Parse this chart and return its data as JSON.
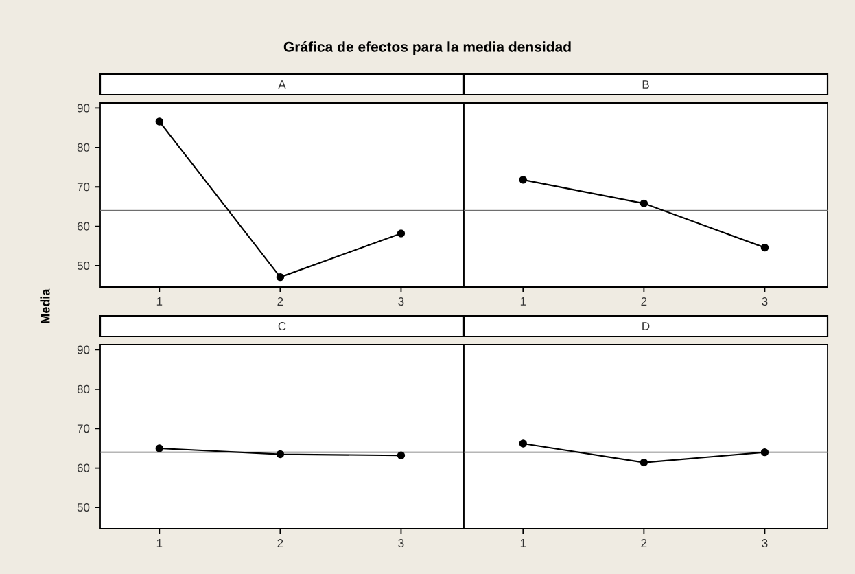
{
  "chart_data": [
    {
      "type": "other",
      "title": "Gráfica de efectos para la media densidad"
    },
    {
      "type": "line",
      "title": "A",
      "ylabel": "Media",
      "categories": [
        "1",
        "2",
        "3"
      ],
      "series": [
        {
          "color": "#000000",
          "values": [
            86.6,
            47.1,
            58.2
          ]
        }
      ],
      "ylim": [
        44.6,
        91.3
      ],
      "yticks": [
        50,
        60,
        70,
        80,
        90
      ],
      "ref_lines": [
        {
          "axis": "y",
          "value": 64,
          "color": "#6e6e6e"
        }
      ],
      "marker": "circle",
      "line_style": "solid",
      "grid": false
    },
    {
      "type": "line",
      "title": "B",
      "categories": [
        "1",
        "2",
        "3"
      ],
      "series": [
        {
          "color": "#000000",
          "values": [
            71.8,
            65.8,
            54.6
          ]
        }
      ],
      "ylim": [
        44.6,
        91.3
      ],
      "tick_labels": "x",
      "ref_lines": [
        {
          "axis": "y",
          "value": 64,
          "color": "#6e6e6e"
        }
      ],
      "marker": "circle",
      "line_style": "solid",
      "grid": false
    },
    {
      "type": "line",
      "title": "C",
      "categories": [
        "1",
        "2",
        "3"
      ],
      "series": [
        {
          "color": "#000000",
          "values": [
            65.0,
            63.5,
            63.2
          ]
        }
      ],
      "ylim": [
        44.6,
        91.3
      ],
      "yticks": [
        50,
        60,
        70,
        80,
        90
      ],
      "ref_lines": [
        {
          "axis": "y",
          "value": 64,
          "color": "#6e6e6e"
        }
      ],
      "marker": "circle",
      "line_style": "solid",
      "grid": false
    },
    {
      "type": "line",
      "title": "D",
      "categories": [
        "1",
        "2",
        "3"
      ],
      "series": [
        {
          "color": "#000000",
          "values": [
            66.2,
            61.4,
            64.0
          ]
        }
      ],
      "ylim": [
        44.6,
        91.3
      ],
      "tick_labels": "x",
      "ref_lines": [
        {
          "axis": "y",
          "value": 64,
          "color": "#6e6e6e"
        }
      ],
      "marker": "circle",
      "line_style": "solid",
      "grid": false
    }
  ]
}
